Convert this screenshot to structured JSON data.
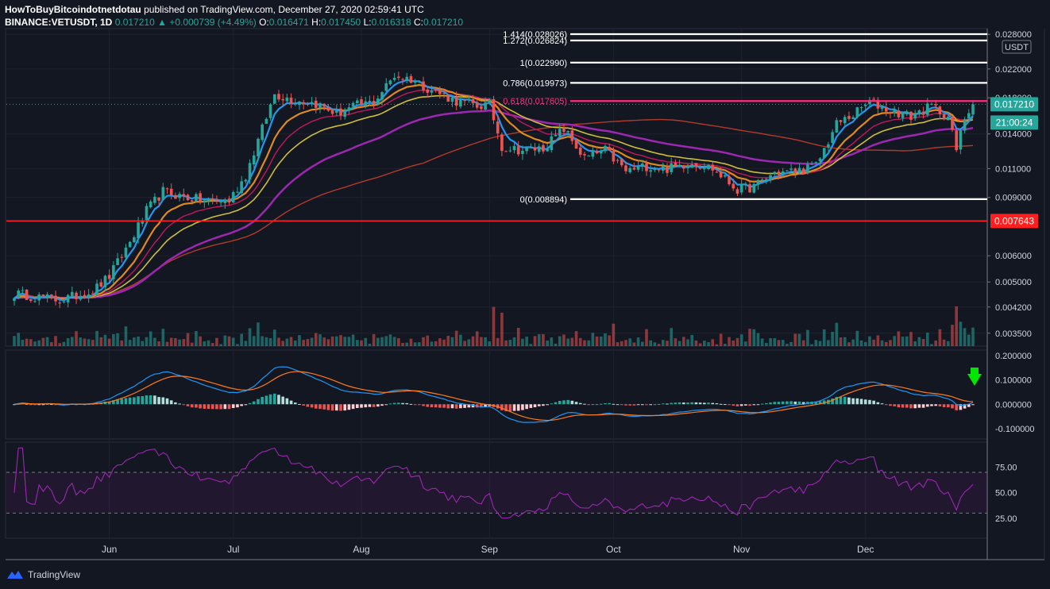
{
  "header": {
    "publisher": "HowToBuyBitcoindotnetdotau",
    "published_text": "published on TradingView.com, December 27, 2020 02:59:41 UTC",
    "symbol": "BINANCE:VETUSDT, 1D",
    "last": "0.017210",
    "change": "▲ +0.000739 (+4.49%)",
    "open_label": "O:",
    "open": "0.016471",
    "high_label": "H:",
    "high": "0.017450",
    "low_label": "L:",
    "low": "0.016318",
    "close_label": "C:",
    "close": "0.017210"
  },
  "footer": {
    "brand": "TradingView"
  },
  "chart_data": [
    {
      "type": "candlestick",
      "title": "BINANCE:VETUSDT, 1D",
      "y_axis_scale": "log",
      "y_unit_label": "USDT",
      "y_ticks": [
        "0.028000",
        "0.022000",
        "0.018000",
        "0.014000",
        "0.011000",
        "0.009000",
        "0.006000",
        "0.005000",
        "0.004200",
        "0.003500"
      ],
      "x_ticks": [
        "Jun",
        "Jul",
        "Aug",
        "Sep",
        "Oct",
        "Nov",
        "Dec"
      ],
      "price_labels": [
        {
          "text": "0.017210",
          "color": "#26a69a"
        },
        {
          "text": "21:00:24",
          "color": "#26a69a"
        },
        {
          "text": "0.007643",
          "color": "#ff1f1f"
        }
      ],
      "fibonacci_levels": [
        {
          "label": "1.414(0.028026)",
          "value": 0.028026,
          "color": "#ffffff"
        },
        {
          "label": "1.272(0.026824)",
          "value": 0.026824,
          "color": "#ffffff"
        },
        {
          "label": "1(0.022990)",
          "value": 0.02299,
          "color": "#ffffff"
        },
        {
          "label": "0.786(0.019973)",
          "value": 0.019973,
          "color": "#ffffff"
        },
        {
          "label": "0.618(0.017605)",
          "value": 0.017605,
          "color": "#ff2e7a"
        },
        {
          "label": "0(0.008894)",
          "value": 0.008894,
          "color": "#ffffff"
        }
      ],
      "horizontal_level": {
        "value": 0.007643,
        "color": "#ff1f1f"
      },
      "last_price": 0.01721,
      "price_path": [
        [
          "2020-05-10",
          0.0046
        ],
        [
          "2020-05-20",
          0.0044
        ],
        [
          "2020-05-28",
          0.0047
        ],
        [
          "2020-06-01",
          0.0052
        ],
        [
          "2020-06-06",
          0.0066
        ],
        [
          "2020-06-10",
          0.0082
        ],
        [
          "2020-06-14",
          0.0094
        ],
        [
          "2020-06-18",
          0.0091
        ],
        [
          "2020-06-24",
          0.0088
        ],
        [
          "2020-06-30",
          0.0088
        ],
        [
          "2020-07-04",
          0.0105
        ],
        [
          "2020-07-08",
          0.0145
        ],
        [
          "2020-07-11",
          0.0185
        ],
        [
          "2020-07-15",
          0.0178
        ],
        [
          "2020-07-21",
          0.0173
        ],
        [
          "2020-07-26",
          0.0161
        ],
        [
          "2020-07-31",
          0.0171
        ],
        [
          "2020-08-04",
          0.0175
        ],
        [
          "2020-08-09",
          0.021
        ],
        [
          "2020-08-13",
          0.0205
        ],
        [
          "2020-08-18",
          0.019
        ],
        [
          "2020-08-24",
          0.0176
        ],
        [
          "2020-08-29",
          0.017
        ],
        [
          "2020-09-01",
          0.0172
        ],
        [
          "2020-09-04",
          0.0128
        ],
        [
          "2020-09-09",
          0.0125
        ],
        [
          "2020-09-14",
          0.0127
        ],
        [
          "2020-09-19",
          0.0145
        ],
        [
          "2020-09-24",
          0.0118
        ],
        [
          "2020-09-29",
          0.0125
        ],
        [
          "2020-10-04",
          0.0108
        ],
        [
          "2020-10-09",
          0.0112
        ],
        [
          "2020-10-14",
          0.011
        ],
        [
          "2020-10-20",
          0.0115
        ],
        [
          "2020-10-25",
          0.011
        ],
        [
          "2020-10-31",
          0.0095
        ],
        [
          "2020-11-04",
          0.0097
        ],
        [
          "2020-11-09",
          0.0107
        ],
        [
          "2020-11-14",
          0.0108
        ],
        [
          "2020-11-19",
          0.0112
        ],
        [
          "2020-11-24",
          0.015
        ],
        [
          "2020-11-28",
          0.016
        ],
        [
          "2020-12-02",
          0.0175
        ],
        [
          "2020-12-07",
          0.0165
        ],
        [
          "2020-12-12",
          0.0158
        ],
        [
          "2020-12-17",
          0.017
        ],
        [
          "2020-12-21",
          0.0158
        ],
        [
          "2020-12-23",
          0.0125
        ],
        [
          "2020-12-25",
          0.0157
        ],
        [
          "2020-12-27",
          0.0172
        ]
      ]
    },
    {
      "type": "line",
      "title": "MACD",
      "y_ticks": [
        "0.200000",
        "0.100000",
        "0.000000",
        "-0.100000"
      ],
      "annotation": "green down arrow"
    },
    {
      "type": "line",
      "title": "RSI",
      "y_ticks": [
        "75.00",
        "50.00",
        "25.00"
      ],
      "bands": [
        70,
        30
      ]
    }
  ],
  "colors": {
    "background": "#131722",
    "up": "#26a69a",
    "down": "#ef5350",
    "ema_fast": "#2196f3",
    "ema_mid": "#e08a1e",
    "ema_red": "#c2185b",
    "ema_yellow": "#cdbd3a",
    "ema_purple": "#9c27b0",
    "sma_long": "#b23a2a",
    "rsi": "#9c27b0",
    "macd_signal": "#ff7a1a"
  }
}
